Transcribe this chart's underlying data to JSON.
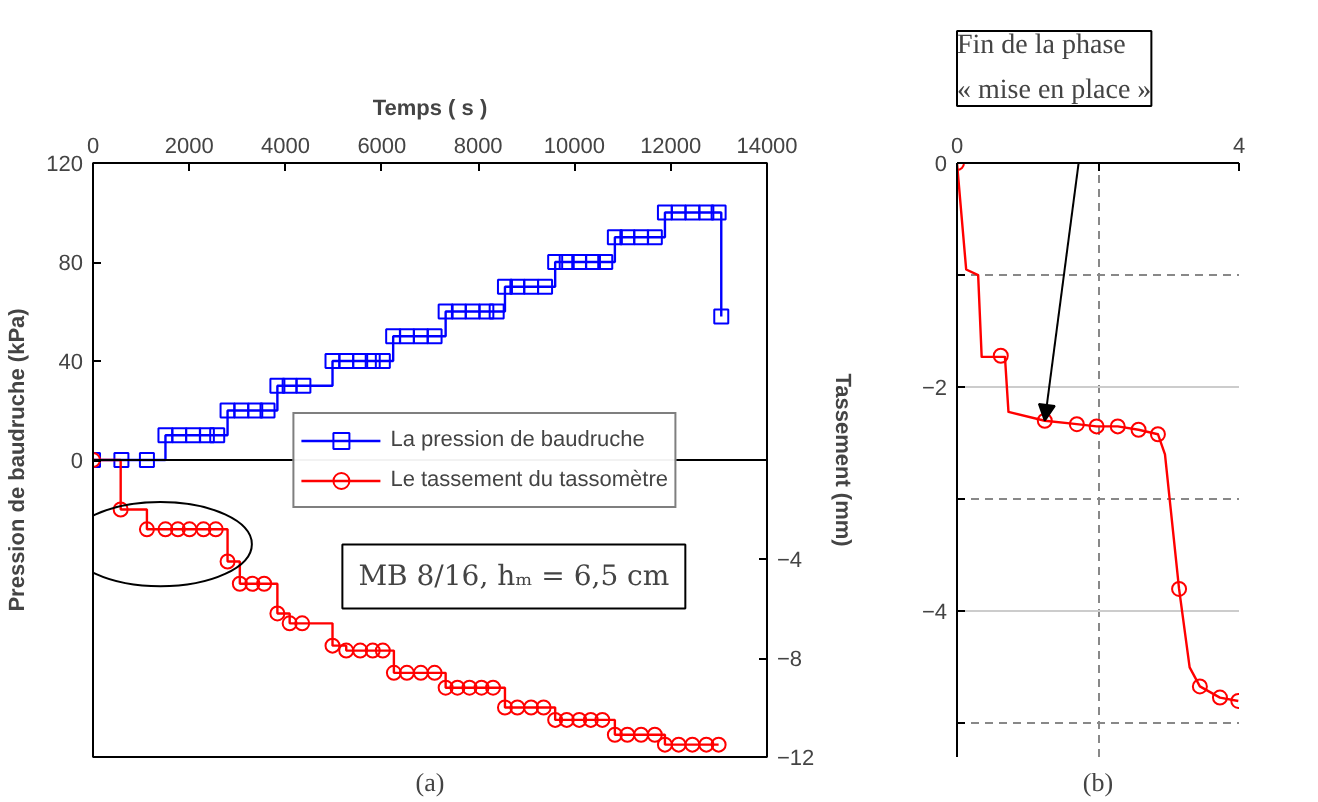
{
  "chart_data": [
    {
      "type": "step",
      "xlabel": "Temps ( s )",
      "ylabel": "Pression de baudruche (kPa)",
      "y2label": "Tassement (mm)",
      "xlim": [
        0,
        14000
      ],
      "xticks": [
        0,
        2000,
        4000,
        6000,
        8000,
        10000,
        12000,
        14000
      ],
      "ylim": [
        -120,
        120
      ],
      "yticks": [
        0,
        40,
        80,
        120
      ],
      "y2lim": [
        -12,
        12
      ],
      "y2ticks": [
        -12,
        -8,
        -4
      ],
      "grid": false,
      "legend": "right",
      "ref_lines": [
        {
          "axis": "y",
          "value": 0
        }
      ],
      "annotations": [
        "MB 8/16, hₘ = 6,5 cm",
        "(a)"
      ],
      "series": [
        {
          "name": "La pression de baudruche",
          "color": "#0000ff",
          "marker": "square",
          "x": [
            0,
            590,
            1120,
            1505,
            1790,
            2080,
            2365,
            2580,
            2795,
            3080,
            3370,
            3625,
            3830,
            4085,
            4370,
            4975,
            5260,
            5550,
            5810,
            6020,
            6235,
            6520,
            6810,
            7095,
            7325,
            7600,
            7885,
            8170,
            8385,
            8557,
            8815,
            9100,
            9390,
            9600,
            9840,
            10100,
            10385,
            10640,
            10840,
            11100,
            11385,
            11670,
            11880,
            12165,
            12450,
            12740,
            12995,
            13050
          ],
          "values": [
            0,
            0,
            0,
            10,
            10,
            10,
            10,
            10,
            20,
            20,
            20,
            20,
            30,
            30,
            30,
            40,
            40,
            40,
            40,
            40,
            50,
            50,
            50,
            50,
            60,
            60,
            60,
            60,
            60,
            70,
            70,
            70,
            70,
            80,
            80,
            80,
            80,
            80,
            90,
            90,
            90,
            90,
            100,
            100,
            100,
            100,
            100,
            58
          ]
        },
        {
          "name": "Le tassement du tassomètre",
          "color": "#ff0000",
          "marker": "circle",
          "axis": "y2",
          "x": [
            0,
            575,
            1120,
            1505,
            1763,
            2005,
            2295,
            2550,
            2795,
            3050,
            3310,
            3555,
            3830,
            4085,
            4345,
            4975,
            5260,
            5550,
            5810,
            6020,
            6250,
            6520,
            6810,
            7095,
            7325,
            7570,
            7820,
            8070,
            8310,
            8557,
            8815,
            9100,
            9360,
            9600,
            9840,
            10100,
            10340,
            10580,
            10840,
            11100,
            11385,
            11670,
            11880,
            12165,
            12450,
            12740,
            12995
          ],
          "values": [
            0,
            -2.0,
            -2.8,
            -2.8,
            -2.8,
            -2.8,
            -2.8,
            -2.8,
            -4.1,
            -5.0,
            -5.0,
            -5.0,
            -6.2,
            -6.6,
            -6.6,
            -7.5,
            -7.7,
            -7.7,
            -7.7,
            -7.7,
            -8.6,
            -8.6,
            -8.6,
            -8.6,
            -9.2,
            -9.2,
            -9.2,
            -9.2,
            -9.2,
            -10.0,
            -10.0,
            -10.0,
            -10.0,
            -10.5,
            -10.5,
            -10.5,
            -10.5,
            -10.5,
            -11.1,
            -11.1,
            -11.1,
            -11.1,
            -11.5,
            -11.5,
            -11.5,
            -11.5,
            -11.5
          ]
        }
      ]
    },
    {
      "type": "line",
      "xlim": [
        0,
        4
      ],
      "xticks": [
        0,
        {
          "value": 2,
          "label": null
        },
        4
      ],
      "ylim": [
        -5.3,
        0
      ],
      "yticks": [
        0,
        {
          "value": -1,
          "label": null
        },
        -2,
        {
          "value": -3,
          "label": null
        },
        -4,
        {
          "value": -5,
          "label": null
        }
      ],
      "grid": true,
      "annotations": [
        "Fin de la phase\n« mise en place »",
        "(b)"
      ],
      "series": [
        {
          "color": "#ff0000",
          "marker": "none",
          "x": [
            0,
            0.13,
            0.3,
            0.35,
            0.68,
            0.73,
            1.245,
            1.7,
            1.98,
            2.28,
            2.575,
            2.85,
            2.95,
            3.15,
            3.3,
            3.445,
            3.73,
            3.99
          ],
          "values": [
            0,
            -0.95,
            -1.0,
            -1.73,
            -1.73,
            -2.22,
            -2.3,
            -2.33,
            -2.35,
            -2.35,
            -2.38,
            -2.42,
            -2.6,
            -3.8,
            -4.5,
            -4.67,
            -4.77,
            -4.8
          ]
        },
        {
          "type": "scatter",
          "color": "#ff0000",
          "marker": "circle",
          "x": [
            0,
            0.621,
            1.245,
            1.7,
            1.98,
            2.28,
            2.575,
            2.85,
            3.15,
            3.445,
            3.73,
            3.99
          ],
          "values": [
            0,
            -1.72,
            -2.3,
            -2.33,
            -2.35,
            -2.35,
            -2.38,
            -2.42,
            -3.8,
            -4.67,
            -4.77,
            -4.8
          ]
        }
      ]
    }
  ]
}
